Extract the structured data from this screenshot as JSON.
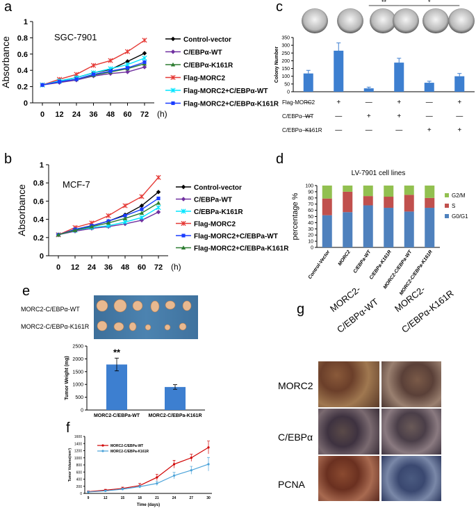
{
  "panel_letters": {
    "a": "a",
    "b": "b",
    "c": "c",
    "d": "d",
    "e": "e",
    "f": "f",
    "g": "g"
  },
  "colors": {
    "black": "#000000",
    "purple": "#7030a0",
    "green": "#2e7d32",
    "red": "#e53935",
    "cyan": "#00e5ff",
    "blue": "#1a3dff",
    "bar_blue": "#3d7fd0",
    "g2m": "#92c050",
    "s": "#c0504d",
    "g0g1": "#4f81bd",
    "line_red": "#d00000",
    "line_blue": "#4ba3d9"
  },
  "chart_data": [
    {
      "id": "a",
      "type": "line",
      "annotation": "SGC-7901",
      "ylabel": "Absorbance",
      "xunit": "(h)",
      "x": [
        0,
        12,
        24,
        36,
        48,
        60,
        72
      ],
      "xticks": [
        "0",
        "12",
        "24",
        "36",
        "48",
        "60",
        "72"
      ],
      "yticks": [
        "0",
        "0.2",
        "0.4",
        "0.6",
        "0.8",
        "1"
      ],
      "ylim": [
        0,
        1
      ],
      "series": [
        {
          "name": "Control-vector",
          "color": "#000000",
          "marker": "diamond",
          "values": [
            0.22,
            0.27,
            0.31,
            0.37,
            0.41,
            0.51,
            0.61
          ]
        },
        {
          "name": "C/EBPα-WT",
          "color": "#7030a0",
          "marker": "diamond",
          "values": [
            0.22,
            0.25,
            0.28,
            0.33,
            0.36,
            0.38,
            0.44
          ]
        },
        {
          "name": "C/EBPα-K161R",
          "color": "#2e7d32",
          "marker": "triangle",
          "values": [
            0.22,
            0.26,
            0.29,
            0.34,
            0.38,
            0.42,
            0.48
          ]
        },
        {
          "name": "Flag-MORC2",
          "color": "#e53935",
          "marker": "x",
          "values": [
            0.22,
            0.29,
            0.35,
            0.46,
            0.52,
            0.63,
            0.77
          ]
        },
        {
          "name": "Flag-MORC2+C/EBPα-WT",
          "color": "#00e5ff",
          "marker": "x",
          "values": [
            0.22,
            0.27,
            0.31,
            0.37,
            0.42,
            0.47,
            0.55
          ]
        },
        {
          "name": "Flag-MORC2+C/EBPα-K161R",
          "color": "#1a3dff",
          "marker": "square",
          "values": [
            0.22,
            0.26,
            0.29,
            0.35,
            0.39,
            0.43,
            0.5
          ]
        }
      ]
    },
    {
      "id": "b",
      "type": "line",
      "annotation": "MCF-7",
      "ylabel": "Absorbance",
      "xunit": "(h)",
      "x": [
        0,
        12,
        24,
        36,
        48,
        60,
        72
      ],
      "xticks": [
        "0",
        "12",
        "24",
        "36",
        "48",
        "60",
        "72"
      ],
      "yticks": [
        "0",
        "0.2",
        "0.4",
        "0.6",
        "0.8",
        "1"
      ],
      "ylim": [
        0,
        1
      ],
      "series": [
        {
          "name": "Control-vector",
          "color": "#000000",
          "marker": "diamond",
          "values": [
            0.23,
            0.29,
            0.33,
            0.38,
            0.45,
            0.55,
            0.7
          ]
        },
        {
          "name": "C/EBPa-WT",
          "color": "#7030a0",
          "marker": "diamond",
          "values": [
            0.23,
            0.27,
            0.3,
            0.32,
            0.35,
            0.39,
            0.48
          ]
        },
        {
          "name": "C/EBPa-K161R",
          "color": "#00e5ff",
          "marker": "x",
          "values": [
            0.23,
            0.28,
            0.31,
            0.33,
            0.37,
            0.42,
            0.53
          ]
        },
        {
          "name": "Flag-MORC2",
          "color": "#e53935",
          "marker": "x",
          "values": [
            0.23,
            0.31,
            0.36,
            0.44,
            0.55,
            0.65,
            0.86
          ]
        },
        {
          "name": "Flag-MORC2+C/EBPa-WT",
          "color": "#1a3dff",
          "marker": "square",
          "values": [
            0.23,
            0.29,
            0.33,
            0.38,
            0.44,
            0.51,
            0.63
          ]
        },
        {
          "name": "Flag-MORC2+C/EBPa-K161R",
          "color": "#2e7d32",
          "marker": "triangle",
          "values": [
            0.23,
            0.28,
            0.32,
            0.36,
            0.41,
            0.47,
            0.58
          ]
        }
      ]
    },
    {
      "id": "c",
      "type": "bar",
      "ylabel": "Colony Number",
      "yticks": [
        "0",
        "50",
        "100",
        "150",
        "200",
        "250",
        "300",
        "350"
      ],
      "ylim": [
        0,
        350
      ],
      "values": [
        118,
        265,
        22,
        188,
        58,
        100
      ],
      "errors": [
        20,
        50,
        8,
        28,
        10,
        18
      ],
      "significance": [
        {
          "label": "**",
          "from": 2,
          "to": 3
        },
        {
          "label": "*",
          "from": 3,
          "to": 5
        }
      ],
      "conditions": [
        {
          "name": "Flag-MORC2",
          "signs": [
            "—",
            "+",
            "—",
            "+",
            "—",
            "+"
          ]
        },
        {
          "name": "C/EBPα–WT",
          "signs": [
            "—",
            "—",
            "+",
            "+",
            "—",
            "—"
          ]
        },
        {
          "name": "C/EBPα–K161R",
          "signs": [
            "—",
            "—",
            "—",
            "—",
            "+",
            "+"
          ]
        }
      ]
    },
    {
      "id": "d",
      "type": "stacked_bar",
      "title": "LV-7901 cell lines",
      "ylabel": "percentage %",
      "yticks": [
        "0",
        "10",
        "20",
        "30",
        "40",
        "50",
        "60",
        "70",
        "80",
        "90",
        "100"
      ],
      "ylim": [
        0,
        100
      ],
      "categories": [
        "Control-Vector",
        "MORC2",
        "C/EBPa-WT",
        "C/EBPa-K161R",
        "MORC2-C/EBPa-WT",
        "MORC2-C/EBPa-K161R"
      ],
      "series": [
        {
          "name": "G0/G1",
          "color": "#4f81bd",
          "values": [
            52,
            57,
            68,
            64,
            58,
            64
          ]
        },
        {
          "name": "S",
          "color": "#c0504d",
          "values": [
            27,
            33,
            15,
            18,
            27,
            16
          ]
        },
        {
          "name": "G2/M",
          "color": "#92c050",
          "values": [
            21,
            10,
            17,
            18,
            15,
            20
          ]
        }
      ],
      "legend_order": [
        "G2/M",
        "S",
        "G0/G1"
      ]
    },
    {
      "id": "e",
      "type": "bar",
      "ylabel": "Tumor Weight (mg)",
      "yticks": [
        "0",
        "500",
        "1000",
        "1500",
        "2000",
        "2500"
      ],
      "ylim": [
        0,
        2500
      ],
      "categories": [
        "MORC2-C/EBPa-WT",
        "MORC2-C/EBPa-K161R"
      ],
      "values": [
        1780,
        900
      ],
      "errors": [
        250,
        90
      ],
      "significance": "**"
    },
    {
      "id": "f",
      "type": "line",
      "ylabel": "Tumor Volume(mm³)",
      "xlabel": "Time (days)",
      "x": [
        9,
        12,
        15,
        18,
        21,
        24,
        27,
        30
      ],
      "xticks": [
        "9",
        "12",
        "15",
        "18",
        "21",
        "24",
        "27",
        "30"
      ],
      "yticks": [
        "0",
        "200",
        "400",
        "600",
        "800",
        "1000",
        "1200",
        "1400",
        "1600"
      ],
      "ylim": [
        0,
        1600
      ],
      "series": [
        {
          "name": "MORC2-C/EBPa-WT",
          "color": "#d00000",
          "values": [
            50,
            90,
            140,
            220,
            450,
            820,
            1000,
            1290
          ],
          "errors": [
            20,
            25,
            35,
            60,
            90,
            110,
            100,
            180
          ]
        },
        {
          "name": "MORC2-C/EBPa-K161R",
          "color": "#4ba3d9",
          "values": [
            40,
            70,
            120,
            190,
            280,
            500,
            650,
            820
          ],
          "errors": [
            15,
            20,
            30,
            40,
            60,
            90,
            110,
            190
          ]
        }
      ]
    }
  ],
  "panel_e_photo": {
    "row1_label": "MORC2-C/EBPα-WT",
    "row2_label": "MORC2-C/EBPα-K161R"
  },
  "panel_g": {
    "col1_line1": "MORC2-",
    "col1_line2": "C/EBPα-WT",
    "col2_line1": "MORC2-",
    "col2_line2": "C/EBPα-K161R",
    "rows": [
      "MORC2",
      "C/EBPα",
      "PCNA"
    ]
  }
}
